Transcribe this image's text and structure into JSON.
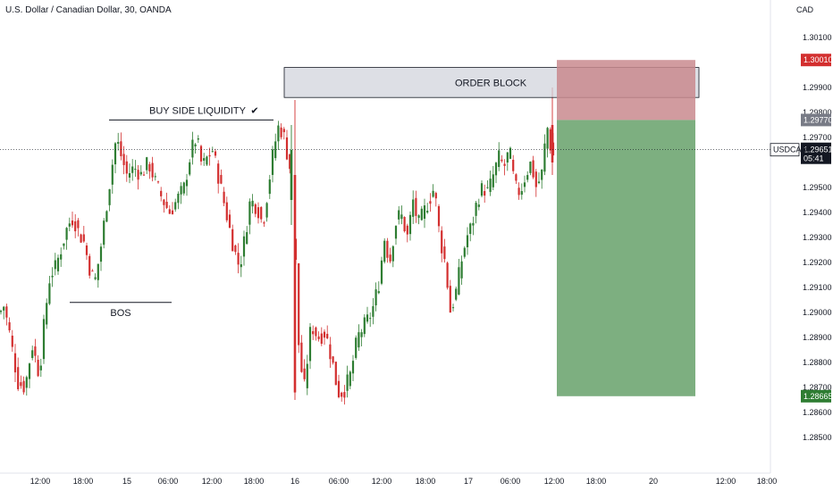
{
  "header": {
    "title": "U.S. Dollar / Canadian Dollar, 30, OANDA",
    "currency": "CAD"
  },
  "annotations": {
    "bsl": "BUY SIDE LIQUIDITY",
    "check": "✔",
    "bos": "BOS",
    "order_block": "ORDER BLOCK"
  },
  "price_tags": {
    "stop": "1.30010",
    "entry": "1.29770",
    "symbol": "USDCAD",
    "current": "1.29651",
    "countdown": "05:41",
    "target": "1.28665"
  },
  "colors": {
    "up": "#26a69a",
    "down": "#ef5350",
    "up_fill": "#2e7d32",
    "down_fill": "#d32f2f",
    "stop_zone": "#c98a8e",
    "target_zone": "#7daf80",
    "order_block": "#d1d4dc"
  },
  "chart_data": {
    "type": "candlestick",
    "symbol": "USDCAD",
    "timeframe": "30",
    "ylim": [
      1.2845,
      1.3018
    ],
    "y_ticks": [
      "1.30100",
      "1.29900",
      "1.29800",
      "1.29700",
      "1.29500",
      "1.29400",
      "1.29300",
      "1.29200",
      "1.29100",
      "1.29000",
      "1.28900",
      "1.28800",
      "1.28700",
      "1.28600",
      "1.28500"
    ],
    "x_ticks": [
      "12:00",
      "18:00",
      "15",
      "06:00",
      "12:00",
      "18:00",
      "16",
      "06:00",
      "12:00",
      "18:00",
      "17",
      "06:00",
      "12:00",
      "18:00",
      "20",
      "12:00",
      "18:00"
    ],
    "segments": [
      [
        [
          0,
          1.29
        ],
        [
          4,
          1.2903
        ],
        [
          10,
          1.2893
        ],
        [
          20,
          1.2872
        ],
        [
          28,
          1.287
        ],
        [
          36,
          1.2887
        ],
        [
          44,
          1.2875
        ],
        [
          50,
          1.2898
        ],
        [
          56,
          1.2915
        ],
        [
          62,
          1.2918
        ],
        [
          68,
          1.2925
        ],
        [
          76,
          1.2935
        ],
        [
          82,
          1.2938
        ],
        [
          88,
          1.2932
        ],
        [
          94,
          1.2928
        ],
        [
          100,
          1.2918
        ],
        [
          106,
          1.2912
        ],
        [
          112,
          1.2924
        ],
        [
          118,
          1.294
        ],
        [
          124,
          1.2955
        ],
        [
          130,
          1.297
        ],
        [
          136,
          1.2962
        ],
        [
          142,
          1.2955
        ],
        [
          150,
          1.2958
        ],
        [
          158,
          1.2955
        ],
        [
          166,
          1.296
        ],
        [
          174,
          1.2952
        ],
        [
          182,
          1.2945
        ],
        [
          190,
          1.294
        ],
        [
          198,
          1.2945
        ],
        [
          206,
          1.295
        ],
        [
          214,
          1.2965
        ],
        [
          220,
          1.297
        ],
        [
          226,
          1.2958
        ],
        [
          232,
          1.2962
        ],
        [
          238,
          1.2965
        ],
        [
          244,
          1.2955
        ],
        [
          250,
          1.2945
        ],
        [
          256,
          1.2935
        ],
        [
          262,
          1.2925
        ],
        [
          268,
          1.2918
        ],
        [
          274,
          1.293
        ],
        [
          280,
          1.2945
        ],
        [
          288,
          1.2942
        ],
        [
          294,
          1.2935
        ],
        [
          300,
          1.295
        ],
        [
          306,
          1.2965
        ],
        [
          312,
          1.2975
        ],
        [
          318,
          1.297
        ],
        [
          322,
          1.2962
        ],
        [
          326,
          1.2955
        ]
      ],
      [
        [
          330,
          1.293
        ],
        [
          334,
          1.2888
        ],
        [
          340,
          1.2868
        ],
        [
          348,
          1.2895
        ],
        [
          356,
          1.289
        ],
        [
          364,
          1.2892
        ],
        [
          372,
          1.288
        ],
        [
          378,
          1.2868
        ],
        [
          384,
          1.2868
        ],
        [
          392,
          1.2875
        ],
        [
          400,
          1.289
        ],
        [
          408,
          1.2895
        ],
        [
          416,
          1.29
        ],
        [
          424,
          1.2912
        ],
        [
          430,
          1.293
        ],
        [
          436,
          1.292
        ],
        [
          442,
          1.2935
        ],
        [
          448,
          1.294
        ],
        [
          456,
          1.293
        ],
        [
          462,
          1.2945
        ],
        [
          468,
          1.2935
        ],
        [
          474,
          1.294
        ],
        [
          480,
          1.2945
        ],
        [
          486,
          1.295
        ],
        [
          492,
          1.293
        ],
        [
          498,
          1.292
        ],
        [
          504,
          1.29
        ],
        [
          510,
          1.2908
        ],
        [
          516,
          1.292
        ],
        [
          522,
          1.293
        ],
        [
          528,
          1.2935
        ],
        [
          534,
          1.2945
        ],
        [
          540,
          1.295
        ],
        [
          546,
          1.2948
        ],
        [
          552,
          1.2955
        ],
        [
          558,
          1.2962
        ],
        [
          564,
          1.2958
        ],
        [
          570,
          1.2965
        ],
        [
          576,
          1.295
        ],
        [
          582,
          1.2948
        ],
        [
          588,
          1.2955
        ],
        [
          594,
          1.296
        ],
        [
          600,
          1.295
        ],
        [
          606,
          1.2955
        ],
        [
          612,
          1.2975
        ],
        [
          618,
          1.2962
        ],
        [
          622,
          1.2965
        ]
      ]
    ],
    "zones": {
      "order_block": [
        1.2986,
        1.2998
      ],
      "stop": [
        1.2977,
        1.3001
      ],
      "target": [
        1.28665,
        1.2977
      ]
    },
    "levels": {
      "buy_side_liquidity": 1.2977,
      "bos": 1.2904,
      "current": 1.29651
    }
  }
}
